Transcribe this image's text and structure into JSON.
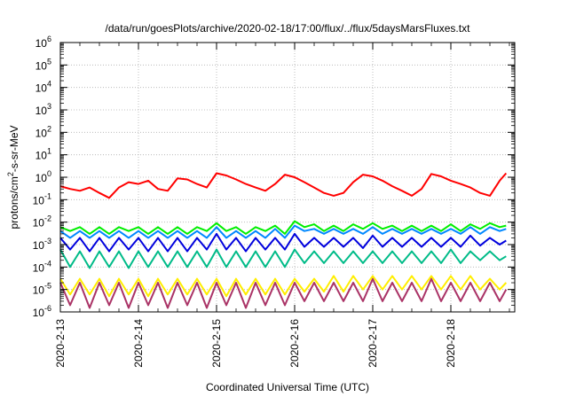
{
  "chart_data": {
    "type": "line",
    "title": "/data/run/goesPlots/archive/2020-02-18/17:00/flux/../flux/5daysMarsFluxes.txt",
    "xlabel": "Coordinated Universal Time (UTC)",
    "ylabel_parts": [
      "protons/cm",
      "2",
      "-s-sr-MeV"
    ],
    "y_scale": "log",
    "ylim": [
      1e-06,
      1000000.0
    ],
    "xlim": [
      "2020-02-13 00:00",
      "2020-02-18 17:00"
    ],
    "grid": true,
    "x_ticks": [
      "2020-2-13",
      "2020-2-14",
      "2020-2-15",
      "2020-2-16",
      "2020-2-17",
      "2020-2-18"
    ],
    "y_ticks": [
      {
        "base": "10",
        "exp": "-6"
      },
      {
        "base": "10",
        "exp": "-5"
      },
      {
        "base": "10",
        "exp": "-4"
      },
      {
        "base": "10",
        "exp": "-3"
      },
      {
        "base": "10",
        "exp": "-2"
      },
      {
        "base": "10",
        "exp": "-1"
      },
      {
        "base": "10",
        "exp": "0"
      },
      {
        "base": "10",
        "exp": "1"
      },
      {
        "base": "10",
        "exp": "2"
      },
      {
        "base": "10",
        "exp": "3"
      },
      {
        "base": "10",
        "exp": "4"
      },
      {
        "base": "10",
        "exp": "5"
      },
      {
        "base": "10",
        "exp": "6"
      }
    ],
    "series_hours": [
      0,
      3,
      6,
      9,
      12,
      15,
      18,
      21,
      24,
      27,
      30,
      33,
      36,
      39,
      42,
      45,
      48,
      51,
      54,
      57,
      60,
      63,
      66,
      69,
      72,
      75,
      78,
      81,
      84,
      87,
      90,
      93,
      96,
      99,
      102,
      105,
      108,
      111,
      114,
      117,
      120,
      123,
      126,
      129,
      132,
      135,
      137
    ],
    "series": [
      {
        "color": "#ff0000",
        "values": [
          0.4,
          0.3,
          0.25,
          0.35,
          0.2,
          0.12,
          0.35,
          0.6,
          0.5,
          0.7,
          0.3,
          0.25,
          0.9,
          0.8,
          0.5,
          0.35,
          1.5,
          1.2,
          0.8,
          0.5,
          0.35,
          0.25,
          0.5,
          1.3,
          1.0,
          0.6,
          0.35,
          0.2,
          0.15,
          0.2,
          0.6,
          1.3,
          1.1,
          0.7,
          0.4,
          0.25,
          0.15,
          0.3,
          1.4,
          1.1,
          0.7,
          0.5,
          0.35,
          0.2,
          0.15,
          0.7,
          1.5
        ]
      },
      {
        "color": "#00ee00",
        "values": [
          0.006,
          0.004,
          0.006,
          0.003,
          0.006,
          0.003,
          0.006,
          0.004,
          0.006,
          0.003,
          0.006,
          0.003,
          0.006,
          0.003,
          0.006,
          0.004,
          0.009,
          0.004,
          0.006,
          0.003,
          0.006,
          0.004,
          0.007,
          0.003,
          0.011,
          0.006,
          0.008,
          0.004,
          0.007,
          0.004,
          0.008,
          0.005,
          0.009,
          0.005,
          0.007,
          0.004,
          0.007,
          0.004,
          0.007,
          0.004,
          0.008,
          0.004,
          0.008,
          0.005,
          0.009,
          0.006,
          0.007
        ]
      },
      {
        "color": "#0088ff",
        "values": [
          0.004,
          0.002,
          0.004,
          0.002,
          0.004,
          0.002,
          0.004,
          0.002,
          0.004,
          0.002,
          0.004,
          0.002,
          0.004,
          0.002,
          0.004,
          0.002,
          0.006,
          0.002,
          0.004,
          0.002,
          0.004,
          0.002,
          0.005,
          0.002,
          0.007,
          0.004,
          0.005,
          0.003,
          0.005,
          0.003,
          0.005,
          0.003,
          0.006,
          0.003,
          0.005,
          0.003,
          0.005,
          0.003,
          0.005,
          0.003,
          0.005,
          0.003,
          0.006,
          0.003,
          0.006,
          0.004,
          0.005
        ]
      },
      {
        "color": "#0000dd",
        "values": [
          0.002,
          0.0006,
          0.002,
          0.0005,
          0.002,
          0.0005,
          0.002,
          0.0006,
          0.002,
          0.0005,
          0.002,
          0.0005,
          0.002,
          0.0005,
          0.002,
          0.0006,
          0.003,
          0.0006,
          0.002,
          0.0005,
          0.002,
          0.0006,
          0.002,
          0.0006,
          0.003,
          0.0008,
          0.002,
          0.0008,
          0.002,
          0.0008,
          0.002,
          0.0007,
          0.0025,
          0.0008,
          0.002,
          0.0008,
          0.002,
          0.0008,
          0.002,
          0.0008,
          0.002,
          0.0008,
          0.0025,
          0.0009,
          0.002,
          0.001,
          0.0015
        ]
      },
      {
        "color": "#00bb88",
        "values": [
          0.0006,
          0.0001,
          0.0005,
          9e-05,
          0.0005,
          0.0001,
          0.0005,
          9e-05,
          0.0005,
          0.0001,
          0.0005,
          0.0001,
          0.0005,
          0.0001,
          0.0005,
          0.0001,
          0.0006,
          0.0001,
          0.0005,
          0.0001,
          0.0005,
          0.0001,
          0.0005,
          0.0001,
          0.0006,
          0.00015,
          0.0005,
          0.00015,
          0.0005,
          0.00015,
          0.0005,
          0.00015,
          0.0005,
          0.00015,
          0.0005,
          0.00015,
          0.0005,
          0.00015,
          0.0005,
          0.00015,
          0.0006,
          0.00015,
          0.0005,
          0.0002,
          0.0005,
          0.0002,
          0.0003
        ]
      },
      {
        "color": "#ffee00",
        "values": [
          3e-05,
          6e-06,
          3e-05,
          6e-06,
          3e-05,
          5e-06,
          3e-05,
          6e-06,
          3e-05,
          5e-06,
          3e-05,
          6e-06,
          3e-05,
          6e-06,
          3e-05,
          6e-06,
          3e-05,
          5e-06,
          3e-05,
          6e-06,
          3e-05,
          6e-06,
          3e-05,
          6e-06,
          3e-05,
          8e-06,
          3e-05,
          8e-06,
          4e-05,
          8e-06,
          4e-05,
          1e-05,
          4e-05,
          1e-05,
          4e-05,
          1e-05,
          4e-05,
          1e-05,
          4e-05,
          1e-05,
          4e-05,
          1e-05,
          4e-05,
          1e-05,
          3e-05,
          1e-05,
          2e-05
        ]
      },
      {
        "color": "#aa3366",
        "values": [
          2e-05,
          2e-06,
          2e-05,
          1.5e-06,
          2e-05,
          2e-06,
          2e-05,
          1.5e-06,
          2e-05,
          2e-06,
          2e-05,
          1.5e-06,
          2e-05,
          2e-06,
          2e-05,
          1.5e-06,
          2e-05,
          2e-06,
          2e-05,
          1.5e-06,
          2e-05,
          2e-06,
          2e-05,
          2e-06,
          2e-05,
          3e-06,
          2e-05,
          3e-06,
          2e-05,
          3e-06,
          2e-05,
          3e-06,
          3e-05,
          3e-06,
          2e-05,
          3e-06,
          2e-05,
          3e-06,
          3e-05,
          3e-06,
          2e-05,
          3e-06,
          2e-05,
          3e-06,
          2e-05,
          3e-06,
          1e-05
        ]
      }
    ]
  }
}
